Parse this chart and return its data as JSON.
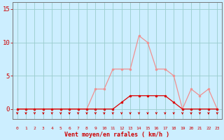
{
  "x": [
    0,
    1,
    2,
    3,
    4,
    5,
    6,
    7,
    8,
    9,
    10,
    11,
    12,
    13,
    14,
    15,
    16,
    17,
    18,
    19,
    20,
    21,
    22,
    23
  ],
  "rafales": [
    0,
    0,
    0,
    0,
    0,
    0,
    0,
    0,
    0,
    3,
    3,
    6,
    6,
    6,
    11,
    10,
    6,
    6,
    5,
    0,
    3,
    2,
    3,
    0
  ],
  "moyen": [
    0,
    0,
    0,
    0,
    0,
    0,
    0,
    0,
    0,
    0,
    0,
    0,
    1,
    2,
    2,
    2,
    2,
    2,
    1,
    0,
    0,
    0,
    0,
    0
  ],
  "color_rafales": "#f09090",
  "color_moyen": "#dd0000",
  "background": "#cceeff",
  "grid_color": "#99cccc",
  "xlabel": "Vent moyen/en rafales ( km/h )",
  "xlabel_color": "#cc0000",
  "ylabel_ticks": [
    0,
    5,
    10,
    15
  ],
  "ylim": [
    -1.5,
    16
  ],
  "xlim": [
    -0.5,
    23.5
  ],
  "tick_color": "#cc0000",
  "arrow_color": "#cc0000",
  "axis_color": "#888888",
  "spine_color": "#777777"
}
